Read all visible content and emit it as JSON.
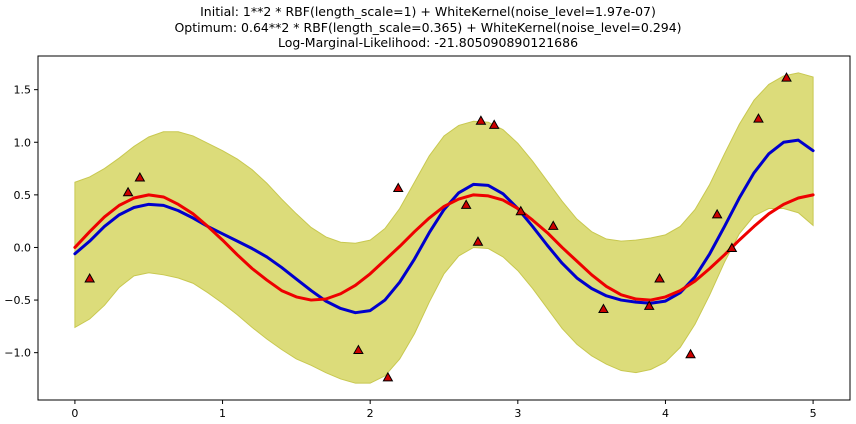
{
  "chart_data": {
    "type": "line",
    "title_lines": [
      "Initial: 1**2 * RBF(length_scale=1) + WhiteKernel(noise_level=1.97e-07)",
      "Optimum: 0.64**2 * RBF(length_scale=0.365) + WhiteKernel(noise_level=0.294)",
      "Log-Marginal-Likelihood: -21.805090890121686"
    ],
    "xlim": [
      -0.25,
      5.25
    ],
    "ylim": [
      -1.45,
      1.82
    ],
    "xticks": [
      0,
      1,
      2,
      3,
      4,
      5
    ],
    "xtick_labels": [
      "0",
      "1",
      "2",
      "3",
      "4",
      "5"
    ],
    "yticks": [
      -1.0,
      -0.5,
      0.0,
      0.5,
      1.0,
      1.5
    ],
    "ytick_labels": [
      "−1.0",
      "−0.5",
      "0.0",
      "0.5",
      "1.0",
      "1.5"
    ],
    "grid": false,
    "colors": {
      "band": "#dcdc7a",
      "band_edge": "#c8c850",
      "mean": "#0000cc",
      "truth": "#ee0000",
      "marker": "#cc0000"
    },
    "series": [
      {
        "kind": "band",
        "x": [
          0,
          0.1,
          0.2,
          0.3,
          0.4,
          0.5,
          0.6,
          0.7,
          0.8,
          0.9,
          1.0,
          1.1,
          1.2,
          1.3,
          1.4,
          1.5,
          1.6,
          1.7,
          1.8,
          1.9,
          2.0,
          2.1,
          2.2,
          2.3,
          2.4,
          2.5,
          2.6,
          2.7,
          2.8,
          2.9,
          3.0,
          3.1,
          3.2,
          3.3,
          3.4,
          3.5,
          3.6,
          3.7,
          3.8,
          3.9,
          4.0,
          4.1,
          4.2,
          4.3,
          4.4,
          4.5,
          4.6,
          4.7,
          4.8,
          4.9,
          5.0
        ],
        "upper": [
          0.62,
          0.67,
          0.75,
          0.85,
          0.96,
          1.05,
          1.1,
          1.1,
          1.06,
          0.99,
          0.92,
          0.84,
          0.74,
          0.61,
          0.46,
          0.32,
          0.19,
          0.1,
          0.05,
          0.04,
          0.07,
          0.18,
          0.37,
          0.62,
          0.87,
          1.06,
          1.16,
          1.2,
          1.19,
          1.12,
          0.99,
          0.82,
          0.63,
          0.44,
          0.27,
          0.15,
          0.08,
          0.06,
          0.07,
          0.09,
          0.12,
          0.2,
          0.36,
          0.6,
          0.89,
          1.17,
          1.4,
          1.55,
          1.63,
          1.66,
          1.62
        ],
        "lower": [
          -0.76,
          -0.68,
          -0.55,
          -0.38,
          -0.27,
          -0.24,
          -0.26,
          -0.29,
          -0.34,
          -0.43,
          -0.53,
          -0.64,
          -0.76,
          -0.87,
          -0.97,
          -1.06,
          -1.12,
          -1.19,
          -1.25,
          -1.29,
          -1.29,
          -1.22,
          -1.06,
          -0.82,
          -0.52,
          -0.25,
          -0.08,
          0.0,
          -0.01,
          -0.09,
          -0.22,
          -0.39,
          -0.58,
          -0.77,
          -0.92,
          -1.03,
          -1.11,
          -1.17,
          -1.19,
          -1.16,
          -1.09,
          -0.95,
          -0.73,
          -0.45,
          -0.14,
          0.13,
          0.3,
          0.37,
          0.37,
          0.33,
          0.21
        ]
      },
      {
        "kind": "line",
        "name": "",
        "color_key": "mean",
        "x": [
          0,
          0.1,
          0.2,
          0.3,
          0.4,
          0.5,
          0.6,
          0.7,
          0.8,
          0.9,
          1.0,
          1.1,
          1.2,
          1.3,
          1.4,
          1.5,
          1.6,
          1.7,
          1.8,
          1.9,
          2.0,
          2.1,
          2.2,
          2.3,
          2.4,
          2.5,
          2.6,
          2.7,
          2.8,
          2.9,
          3.0,
          3.1,
          3.2,
          3.3,
          3.4,
          3.5,
          3.6,
          3.7,
          3.8,
          3.9,
          4.0,
          4.1,
          4.2,
          4.3,
          4.4,
          4.5,
          4.6,
          4.7,
          4.8,
          4.9,
          5.0
        ],
        "y": [
          -0.06,
          0.06,
          0.2,
          0.31,
          0.38,
          0.41,
          0.4,
          0.35,
          0.28,
          0.2,
          0.13,
          0.06,
          -0.01,
          -0.09,
          -0.19,
          -0.3,
          -0.41,
          -0.51,
          -0.58,
          -0.62,
          -0.6,
          -0.5,
          -0.33,
          -0.11,
          0.14,
          0.36,
          0.52,
          0.6,
          0.59,
          0.51,
          0.37,
          0.2,
          0.02,
          -0.15,
          -0.29,
          -0.39,
          -0.46,
          -0.5,
          -0.52,
          -0.53,
          -0.51,
          -0.43,
          -0.28,
          -0.06,
          0.2,
          0.47,
          0.71,
          0.89,
          1.0,
          1.02,
          0.92
        ]
      },
      {
        "kind": "line",
        "name": "",
        "color_key": "truth",
        "x": [
          0,
          0.1,
          0.2,
          0.3,
          0.4,
          0.5,
          0.6,
          0.7,
          0.8,
          0.9,
          1.0,
          1.1,
          1.2,
          1.3,
          1.4,
          1.5,
          1.6,
          1.7,
          1.8,
          1.9,
          2.0,
          2.1,
          2.2,
          2.3,
          2.4,
          2.5,
          2.6,
          2.7,
          2.8,
          2.9,
          3.0,
          3.1,
          3.2,
          3.3,
          3.4,
          3.5,
          3.6,
          3.7,
          3.8,
          3.9,
          4.0,
          4.1,
          4.2,
          4.3,
          4.4,
          4.5,
          4.6,
          4.7,
          4.8,
          4.9,
          5.0
        ],
        "y": [
          0.0,
          0.15,
          0.29,
          0.4,
          0.47,
          0.5,
          0.48,
          0.41,
          0.32,
          0.2,
          0.07,
          -0.07,
          -0.2,
          -0.31,
          -0.41,
          -0.47,
          -0.5,
          -0.49,
          -0.44,
          -0.36,
          -0.25,
          -0.12,
          0.01,
          0.15,
          0.28,
          0.39,
          0.46,
          0.5,
          0.49,
          0.45,
          0.37,
          0.26,
          0.14,
          0.0,
          -0.13,
          -0.26,
          -0.37,
          -0.45,
          -0.49,
          -0.5,
          -0.47,
          -0.41,
          -0.32,
          -0.2,
          -0.07,
          0.07,
          0.2,
          0.32,
          0.41,
          0.47,
          0.5
        ]
      },
      {
        "kind": "scatter",
        "name": "",
        "color_key": "marker",
        "x": [
          0.1,
          0.36,
          0.44,
          1.92,
          2.12,
          2.19,
          2.65,
          2.73,
          2.75,
          2.84,
          3.02,
          3.24,
          3.58,
          3.89,
          3.96,
          4.17,
          4.35,
          4.45,
          4.63,
          4.82
        ],
        "y": [
          -0.3,
          0.52,
          0.66,
          -0.98,
          -1.24,
          0.56,
          0.4,
          0.05,
          1.2,
          1.16,
          0.34,
          0.2,
          -0.59,
          -0.56,
          -0.3,
          -1.02,
          0.31,
          -0.01,
          1.22,
          1.61
        ]
      }
    ]
  }
}
